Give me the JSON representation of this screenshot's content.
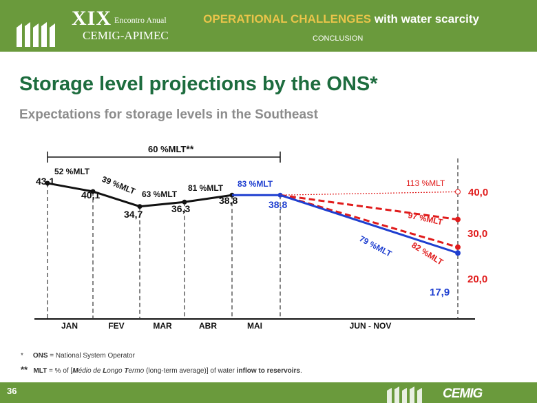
{
  "header": {
    "event_numeral": "XIX",
    "event_name": "Encontro Anual",
    "event_org": "CEMIG-APIMEC",
    "title_highlight": "OPERATIONAL CHALLENGES",
    "title_rest": " with water scarcity",
    "section": "CONCLUSION"
  },
  "slide": {
    "title": "Storage level projections by the ONS*",
    "subtitle": "Expectations for storage levels in the Southeast"
  },
  "footnotes": {
    "fn1_marker": "*",
    "fn1_term": "ONS",
    "fn1_text": " = National System Operator",
    "fn2_marker": "**",
    "fn2_term": "MLT",
    "fn2_text_a": " = % of  [",
    "fn2_m": "M",
    "fn2_edio": "édio de ",
    "fn2_l": "L",
    "fn2_ongo": "ongo ",
    "fn2_t": "T",
    "fn2_ermo": "ermo",
    "fn2_text_b": " (long-term average)] of water ",
    "fn2_bold_end": "inflow to reservoirs",
    "fn2_end": "."
  },
  "footer": {
    "page_number": "36",
    "logo": "CEMIG"
  },
  "colors": {
    "header_green": "#6a9a3c",
    "title_green": "#1d6c3e",
    "historical": "#111111",
    "recent": "#1f3fd0",
    "projection": "#e01b1b"
  },
  "chart_data": {
    "type": "line",
    "categories": [
      "JAN",
      "FEV",
      "MAR",
      "ABR",
      "MAI",
      "JUN - NOV"
    ],
    "bracket_label": "60 %MLT",
    "bracket_marker": "**",
    "historical": {
      "points": [
        {
          "value": 43.1,
          "label": "43,1"
        },
        {
          "value": 40.1,
          "label": "40,1"
        },
        {
          "value": 34.7,
          "label": "34,7"
        },
        {
          "value": 36.3,
          "label": "36,3"
        },
        {
          "value": 38.8,
          "label": "38,8"
        }
      ],
      "segment_labels": [
        "52 %MLT",
        "39 %MLT",
        "63 %MLT",
        "81 %MLT"
      ]
    },
    "recent": {
      "label": "83 %MLT",
      "end_value": 38.8,
      "end_label": "38,8"
    },
    "projections": [
      {
        "name": "113 %MLT",
        "value": 40.0,
        "label": "40,0",
        "color": "#e01b1b",
        "style": "dotted"
      },
      {
        "name": "97 %MLT",
        "value": 30.0,
        "label": "30,0",
        "color": "#e01b1b",
        "style": "dashed"
      },
      {
        "name": "82 %MLT",
        "value": 20.0,
        "label": "20,0",
        "color": "#e01b1b",
        "style": "dashed"
      },
      {
        "name": "79 %MLT",
        "value": 17.9,
        "label": "17,9",
        "color": "#1f3fd0",
        "style": "solid"
      }
    ]
  }
}
